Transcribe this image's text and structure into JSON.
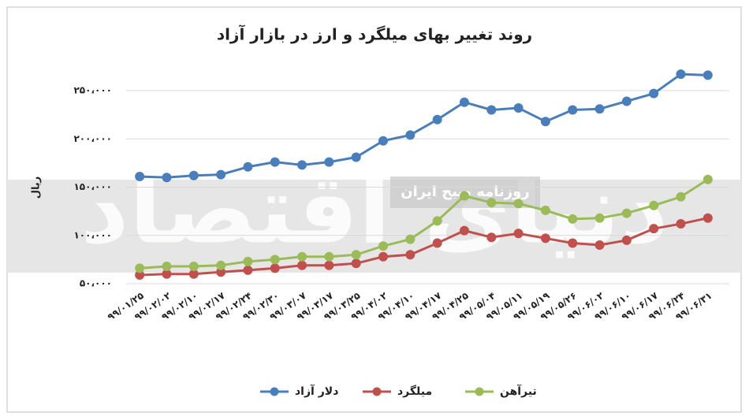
{
  "chart_data": {
    "type": "line",
    "title": "روند تغییر بهای میلگرد و ارز در بازار آزاد",
    "y_label": "ریال",
    "watermark": "روزنامه صبح ایران",
    "watermark_logo": "دنیای اقتصاد",
    "categories": [
      "۹۹/۰۱/۲۵",
      "۹۹/۰۲/۰۲",
      "۹۹/۰۲/۱۰",
      "۹۹/۰۲/۱۷",
      "۹۹/۰۲/۲۴",
      "۹۹/۰۲/۳۰",
      "۹۹/۰۳/۰۷",
      "۹۹/۰۳/۱۷",
      "۹۹/۰۳/۲۵",
      "۹۹/۰۴/۰۲",
      "۹۹/۰۴/۱۰",
      "۹۹/۰۴/۱۷",
      "۹۹/۰۴/۲۵",
      "۹۹/۰۵/۰۴",
      "۹۹/۰۵/۱۱",
      "۹۹/۰۵/۱۹",
      "۹۹/۰۵/۲۶",
      "۹۹/۰۶/۰۲",
      "۹۹/۰۶/۱۰",
      "۹۹/۰۶/۱۷",
      "۹۹/۰۶/۲۴",
      "۹۹/۰۶/۳۱"
    ],
    "series": [
      {
        "name": "دلار آزاد",
        "color": "#4a7ebb",
        "values": [
          161000,
          160000,
          162000,
          163000,
          171000,
          176000,
          173000,
          176000,
          181000,
          198000,
          204000,
          220000,
          238000,
          230000,
          232000,
          218000,
          230000,
          231000,
          239000,
          247000,
          267000,
          266000
        ]
      },
      {
        "name": "میلگرد",
        "color": "#c0504d",
        "values": [
          59000,
          60000,
          60000,
          62000,
          64000,
          66000,
          69000,
          69000,
          71000,
          78000,
          80000,
          92000,
          105000,
          98000,
          102000,
          97000,
          92000,
          90000,
          95000,
          107000,
          112000,
          118000
        ]
      },
      {
        "name": "تیرآهن",
        "color": "#9bbb59",
        "values": [
          66000,
          68000,
          68000,
          69000,
          73000,
          75000,
          78000,
          78000,
          80000,
          89000,
          96000,
          115000,
          141000,
          134000,
          133000,
          126000,
          117000,
          118000,
          123000,
          131000,
          140000,
          158000
        ]
      }
    ],
    "ylim": [
      50000,
      270000
    ],
    "yticks": [
      {
        "value": 50000,
        "label": "۵۰،۰۰۰"
      },
      {
        "value": 100000,
        "label": "۱۰۰،۰۰۰"
      },
      {
        "value": 150000,
        "label": "۱۵۰،۰۰۰"
      },
      {
        "value": 200000,
        "label": "۲۰۰،۰۰۰"
      },
      {
        "value": 250000,
        "label": "۲۵۰،۰۰۰"
      }
    ],
    "grid": true
  }
}
